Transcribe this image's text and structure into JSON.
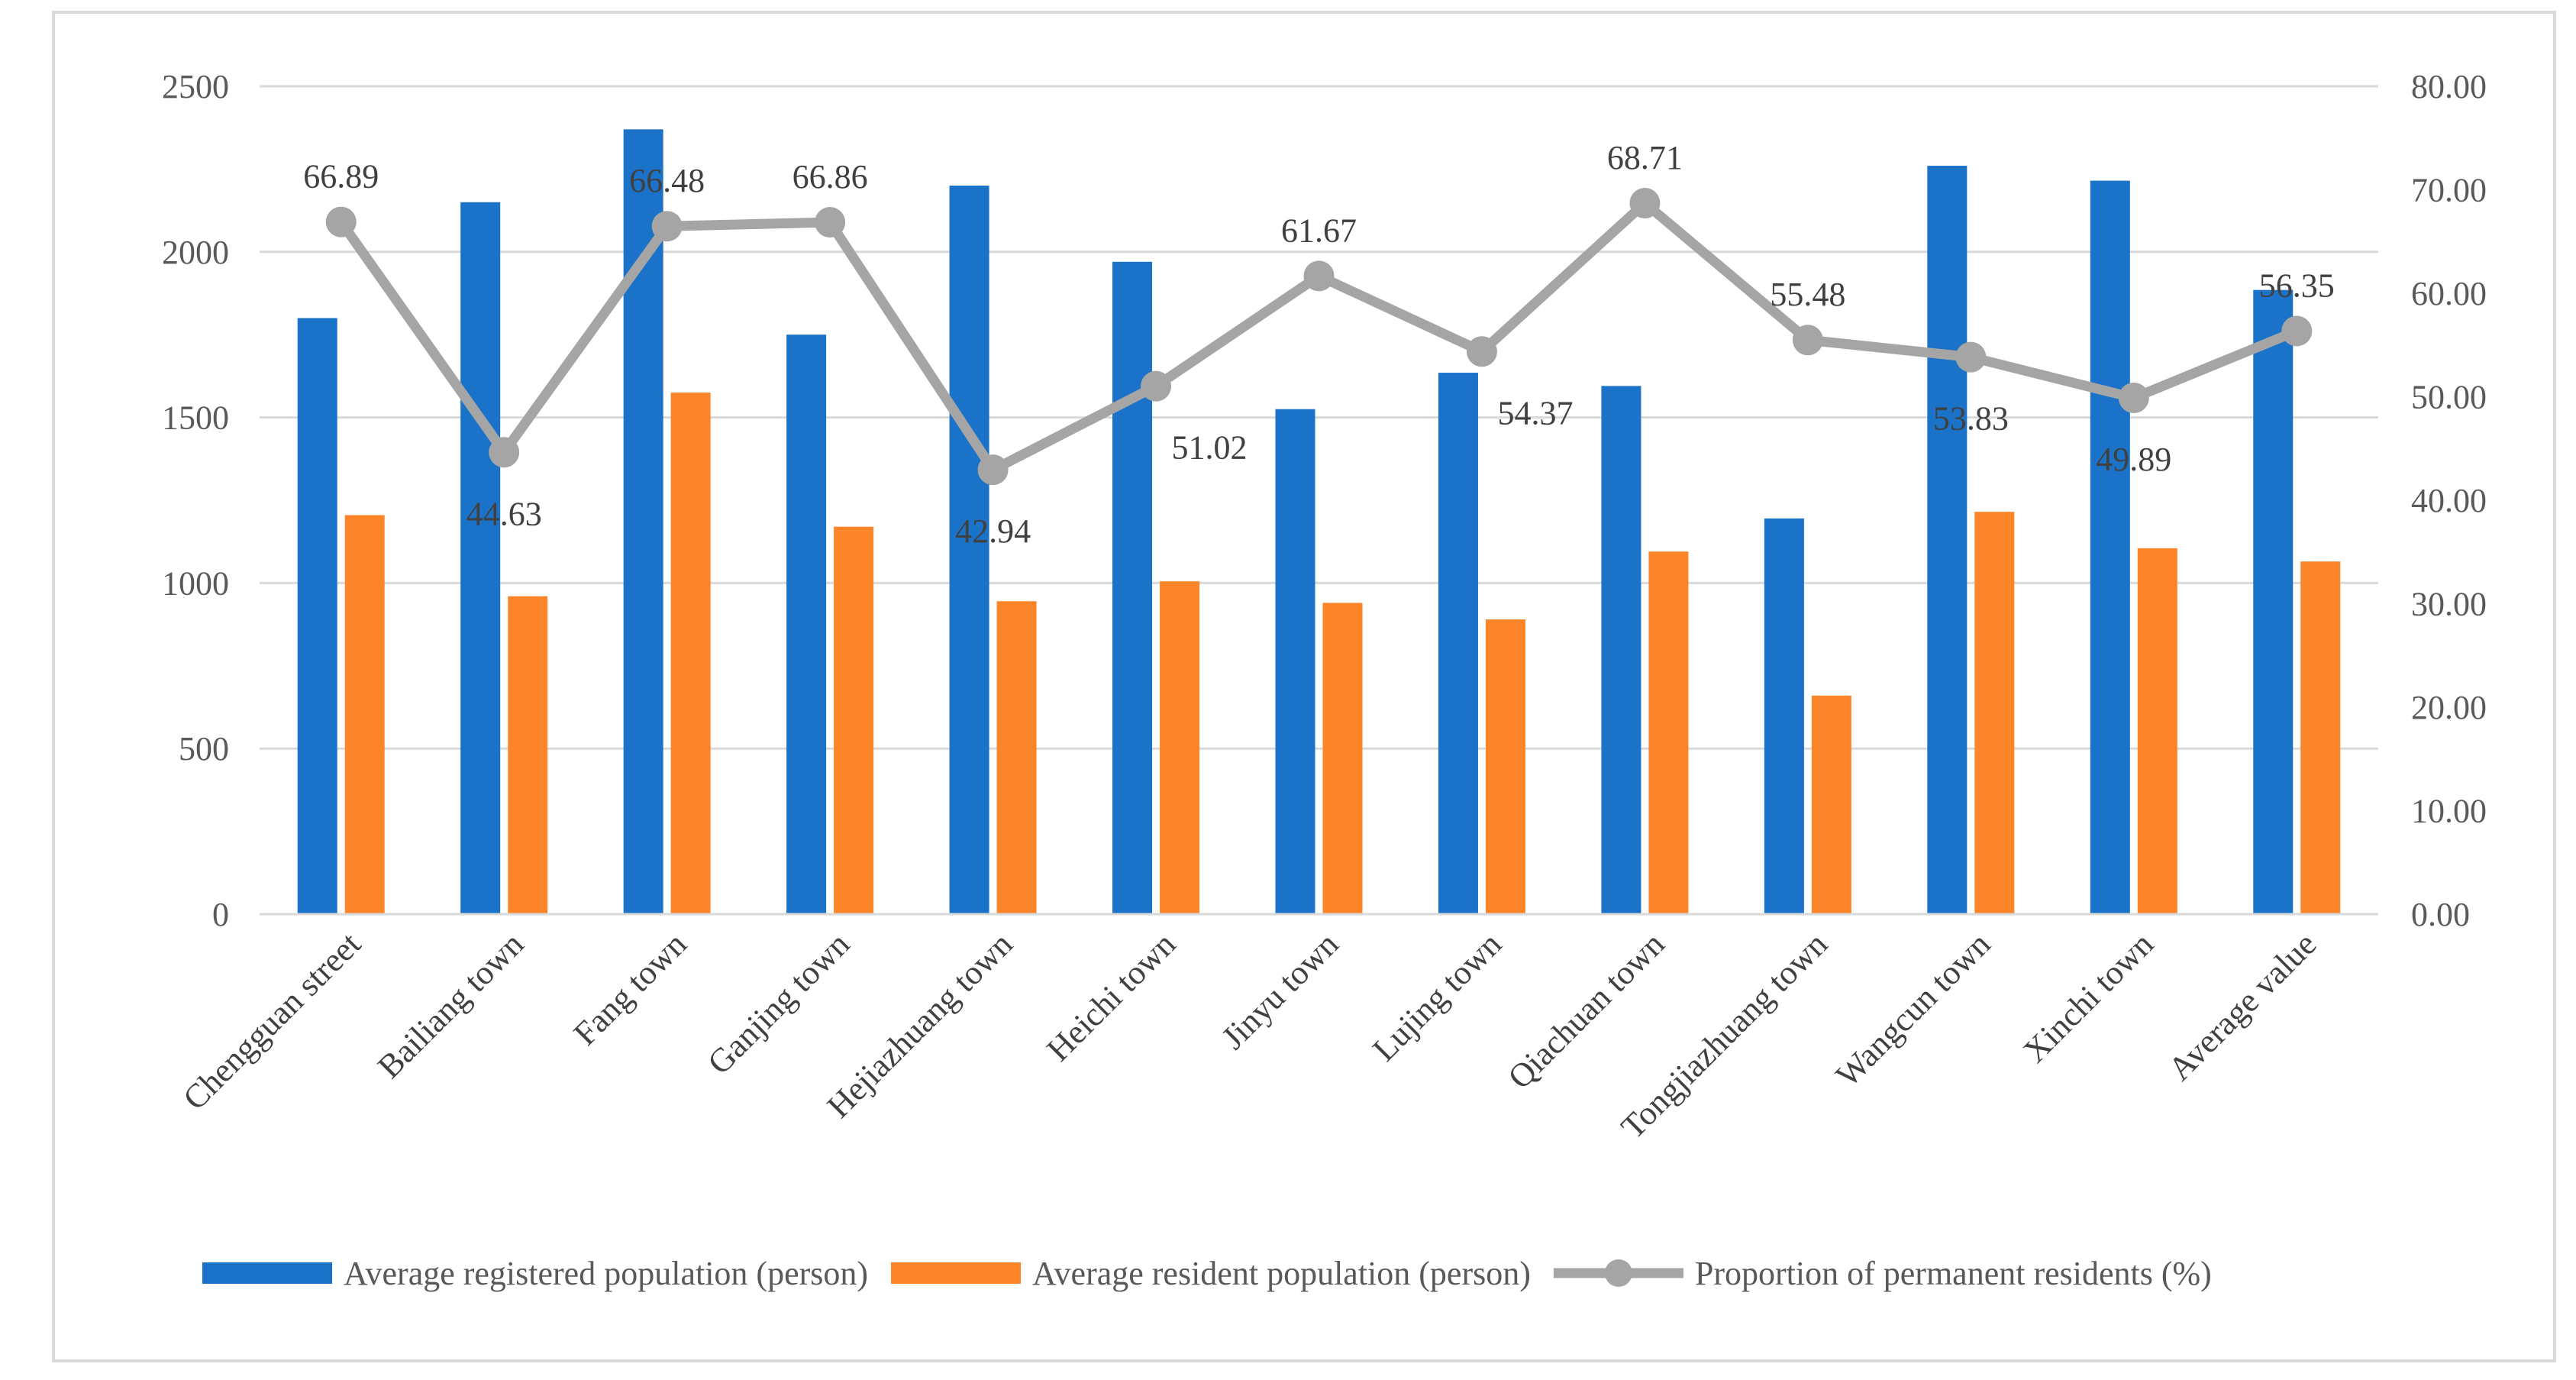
{
  "chart_data": {
    "type": "bar",
    "title": "",
    "categories": [
      "Chengguan street",
      "Bailiang town",
      "Fang town",
      "Ganjing town",
      "Hejiazhuang town",
      "Heichi town",
      "Jinyu town",
      "Lujing town",
      "Qiachuan town",
      "Tongjiazhuang town",
      "Wangcun town",
      "Xinchi town",
      "Average value"
    ],
    "series": [
      {
        "name": "Average registered population (person)",
        "kind": "bar",
        "axis": "left",
        "color": "#1a73c8",
        "values": [
          1800,
          2150,
          2370,
          1750,
          2200,
          1970,
          1525,
          1635,
          1595,
          1195,
          2260,
          2215,
          1885
        ]
      },
      {
        "name": "Average resident population (person)",
        "kind": "bar",
        "axis": "left",
        "color": "#fb8528",
        "values": [
          1205,
          960,
          1575,
          1170,
          945,
          1005,
          940,
          890,
          1095,
          660,
          1215,
          1105,
          1065
        ]
      },
      {
        "name": "Proportion of permanent residents (%)",
        "kind": "line",
        "axis": "right",
        "color": "#a5a5a5",
        "values": [
          66.89,
          44.63,
          66.48,
          66.86,
          42.94,
          51.02,
          61.67,
          54.37,
          68.71,
          55.48,
          53.83,
          49.89,
          56.35
        ],
        "labels": [
          "66.89",
          "44.63",
          "66.48",
          "66.86",
          "42.94",
          "51.02",
          "61.67",
          "54.37",
          "68.71",
          "55.48",
          "53.83",
          "49.89",
          "56.35"
        ]
      }
    ],
    "y_left": {
      "ticks": [
        "0",
        "500",
        "1000",
        "1500",
        "2000",
        "2500"
      ],
      "ylim": [
        0,
        2500
      ]
    },
    "y_right": {
      "ticks": [
        "0.00",
        "10.00",
        "20.00",
        "30.00",
        "40.00",
        "50.00",
        "60.00",
        "70.00",
        "80.00"
      ],
      "ylim": [
        0,
        80
      ]
    },
    "grid": true,
    "legend": "bottom"
  }
}
